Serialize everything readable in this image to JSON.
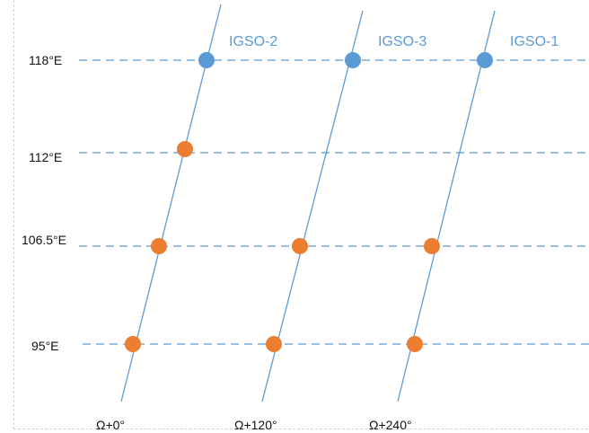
{
  "longitudes": [
    {
      "label": "118°E"
    },
    {
      "label": "112°E"
    },
    {
      "label": "106.5°E"
    },
    {
      "label": "95°E"
    }
  ],
  "planes": [
    {
      "label": "Ω+0°",
      "satellite": "IGSO-2"
    },
    {
      "label": "Ω+120°",
      "satellite": "IGSO-3"
    },
    {
      "label": "Ω+240°",
      "satellite": "IGSO-1"
    }
  ],
  "colors": {
    "track": "#5b9bd5",
    "gridline": "#5b9bd5",
    "satellite_dot": "#5b9bd5",
    "ground_dot": "#ed7d31"
  }
}
